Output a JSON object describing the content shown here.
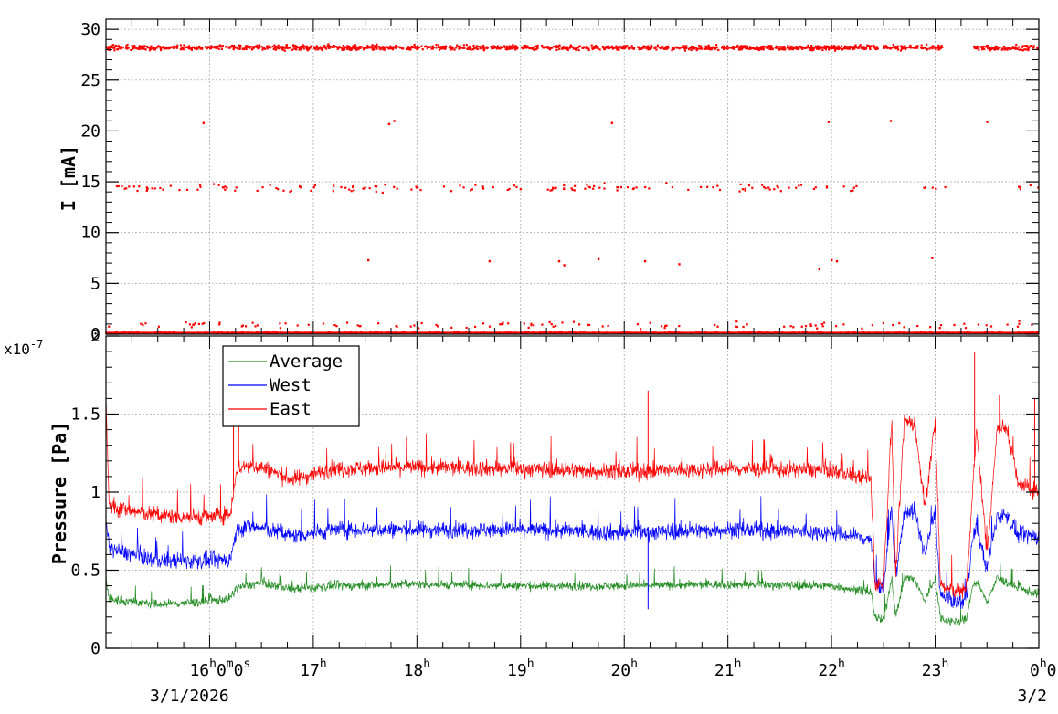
{
  "chart_data": [
    {
      "type": "scatter",
      "ylabel": "I [mA]",
      "ylim": [
        0,
        31
      ],
      "yticks": [
        0,
        5,
        10,
        15,
        20,
        25,
        30
      ],
      "xlim": [
        15.0,
        24.0
      ],
      "grid": true,
      "series": [
        {
          "color": "#ff0000",
          "bands": [
            {
              "value": 28.2,
              "spread": 0.4,
              "count": 1400,
              "ranges": [
                [
                  15.0,
                  22.45
                ],
                [
                  22.5,
                  23.07
                ],
                [
                  23.36,
                  24.0
                ]
              ]
            },
            {
              "value": 0.15,
              "spread": 0.1,
              "count": 500,
              "ranges": [
                [
                  15.0,
                  24.0
                ]
              ]
            },
            {
              "value": 0.9,
              "spread": 0.6,
              "count": 120,
              "ranges": [
                [
                  15.0,
                  24.0
                ]
              ]
            },
            {
              "value": 14.4,
              "spread": 0.6,
              "count": 170,
              "ranges": [
                [
                  15.1,
                  22.45
                ],
                [
                  22.85,
                  23.1
                ],
                [
                  23.75,
                  24.0
                ]
              ]
            }
          ],
          "points": [
            [
              15.94,
              20.8
            ],
            [
              17.73,
              20.7
            ],
            [
              17.78,
              21.0
            ],
            [
              19.88,
              20.8
            ],
            [
              21.97,
              20.9
            ],
            [
              22.57,
              21.0
            ],
            [
              23.5,
              20.9
            ],
            [
              17.53,
              7.3
            ],
            [
              18.7,
              7.2
            ],
            [
              19.37,
              7.2
            ],
            [
              19.42,
              6.8
            ],
            [
              19.75,
              7.4
            ],
            [
              20.2,
              7.2
            ],
            [
              20.53,
              6.9
            ],
            [
              21.88,
              6.4
            ],
            [
              22.0,
              7.3
            ],
            [
              22.05,
              7.2
            ],
            [
              22.97,
              7.5
            ]
          ]
        }
      ]
    },
    {
      "type": "line",
      "ylabel": "Pressure [Pa]",
      "exponent_label": "x10",
      "exponent_power": "-7",
      "ylim": [
        0,
        2
      ],
      "yticks": [
        0,
        0.5,
        1,
        1.5,
        2
      ],
      "yticklabels": [
        "0",
        "0.5",
        "1",
        "1.5",
        "2"
      ],
      "xlim": [
        15.0,
        24.0
      ],
      "grid": true,
      "legend_placement": "top-left",
      "series": [
        {
          "name": "Average",
          "color": "#228b22",
          "x": [
            15.0,
            15.03,
            15.08,
            15.5,
            16.0,
            16.2,
            16.26,
            16.35,
            16.5,
            16.8,
            17.2,
            18.0,
            19.0,
            20.0,
            21.0,
            22.0,
            22.38,
            22.42,
            22.5,
            22.58,
            22.62,
            22.7,
            22.8,
            22.9,
            23.0,
            23.05,
            23.1,
            23.2,
            23.3,
            23.36,
            23.4,
            23.5,
            23.6,
            23.7,
            23.8,
            24.0
          ],
          "y": [
            0.45,
            0.32,
            0.31,
            0.28,
            0.3,
            0.32,
            0.39,
            0.4,
            0.42,
            0.38,
            0.4,
            0.41,
            0.4,
            0.4,
            0.41,
            0.4,
            0.36,
            0.2,
            0.17,
            0.45,
            0.2,
            0.45,
            0.44,
            0.3,
            0.45,
            0.2,
            0.18,
            0.17,
            0.18,
            0.4,
            0.42,
            0.3,
            0.45,
            0.42,
            0.38,
            0.35
          ],
          "noise": 0.05
        },
        {
          "name": "West",
          "color": "#0000ff",
          "x": [
            15.0,
            15.03,
            15.08,
            15.5,
            16.0,
            16.2,
            16.26,
            16.35,
            16.5,
            16.8,
            17.2,
            18.0,
            19.0,
            20.0,
            21.0,
            22.0,
            22.38,
            22.42,
            22.5,
            22.58,
            22.62,
            22.7,
            22.8,
            22.9,
            23.0,
            23.05,
            23.1,
            23.2,
            23.3,
            23.36,
            23.4,
            23.5,
            23.6,
            23.7,
            23.8,
            24.0
          ],
          "y": [
            0.8,
            0.66,
            0.63,
            0.56,
            0.56,
            0.57,
            0.75,
            0.78,
            0.77,
            0.72,
            0.76,
            0.76,
            0.76,
            0.74,
            0.76,
            0.74,
            0.7,
            0.42,
            0.38,
            0.9,
            0.42,
            0.88,
            0.88,
            0.6,
            0.88,
            0.34,
            0.32,
            0.3,
            0.3,
            0.7,
            0.78,
            0.5,
            0.85,
            0.85,
            0.72,
            0.72
          ],
          "noise": 0.09
        },
        {
          "name": "East",
          "color": "#ff0000",
          "x": [
            15.0,
            15.03,
            15.08,
            15.5,
            16.0,
            16.2,
            16.26,
            16.35,
            16.5,
            16.8,
            17.2,
            18.0,
            19.0,
            20.0,
            21.0,
            22.0,
            22.38,
            22.42,
            22.5,
            22.58,
            22.62,
            22.7,
            22.8,
            22.9,
            23.0,
            23.05,
            23.1,
            23.2,
            23.3,
            23.36,
            23.4,
            23.5,
            23.6,
            23.7,
            23.8,
            24.0
          ],
          "y": [
            1.6,
            0.92,
            0.9,
            0.85,
            0.84,
            0.86,
            1.15,
            1.17,
            1.16,
            1.08,
            1.15,
            1.16,
            1.15,
            1.13,
            1.15,
            1.14,
            1.08,
            0.42,
            0.4,
            1.45,
            0.45,
            1.45,
            1.45,
            0.9,
            1.45,
            0.42,
            0.38,
            0.37,
            0.36,
            1.0,
            1.4,
            0.6,
            1.42,
            1.4,
            1.05,
            1.0
          ],
          "noise": 0.09
        }
      ],
      "spikes": [
        {
          "series": "East",
          "x": 16.23,
          "y": 1.55
        },
        {
          "series": "East",
          "x": 16.28,
          "y": 1.48
        },
        {
          "series": "East",
          "x": 17.7,
          "y": 1.25
        },
        {
          "series": "East",
          "x": 20.23,
          "y": 1.65
        },
        {
          "series": "East",
          "x": 23.38,
          "y": 1.9
        },
        {
          "series": "East",
          "x": 23.62,
          "y": 1.62
        },
        {
          "series": "East",
          "x": 23.96,
          "y": 1.6
        },
        {
          "series": "West",
          "x": 20.23,
          "y": 0.25
        }
      ]
    }
  ],
  "xaxis": {
    "ticks": [
      {
        "x": 16,
        "text": "16",
        "sup": "h",
        "suffix": [
          {
            "text": "0",
            "sup": "m"
          },
          {
            "text": "0",
            "sup": "s"
          }
        ]
      },
      {
        "x": 17,
        "text": "17",
        "sup": "h"
      },
      {
        "x": 18,
        "text": "18",
        "sup": "h"
      },
      {
        "x": 19,
        "text": "19",
        "sup": "h"
      },
      {
        "x": 20,
        "text": "20",
        "sup": "h"
      },
      {
        "x": 21,
        "text": "21",
        "sup": "h"
      },
      {
        "x": 22,
        "text": "22",
        "sup": "h"
      },
      {
        "x": 23,
        "text": "23",
        "sup": "h"
      },
      {
        "x": 24,
        "text": "0",
        "sup": "h",
        "suffix": [
          {
            "text": "0",
            "sup": ""
          }
        ]
      }
    ],
    "date_left": "3/1/2026",
    "date_right": "3/2"
  }
}
